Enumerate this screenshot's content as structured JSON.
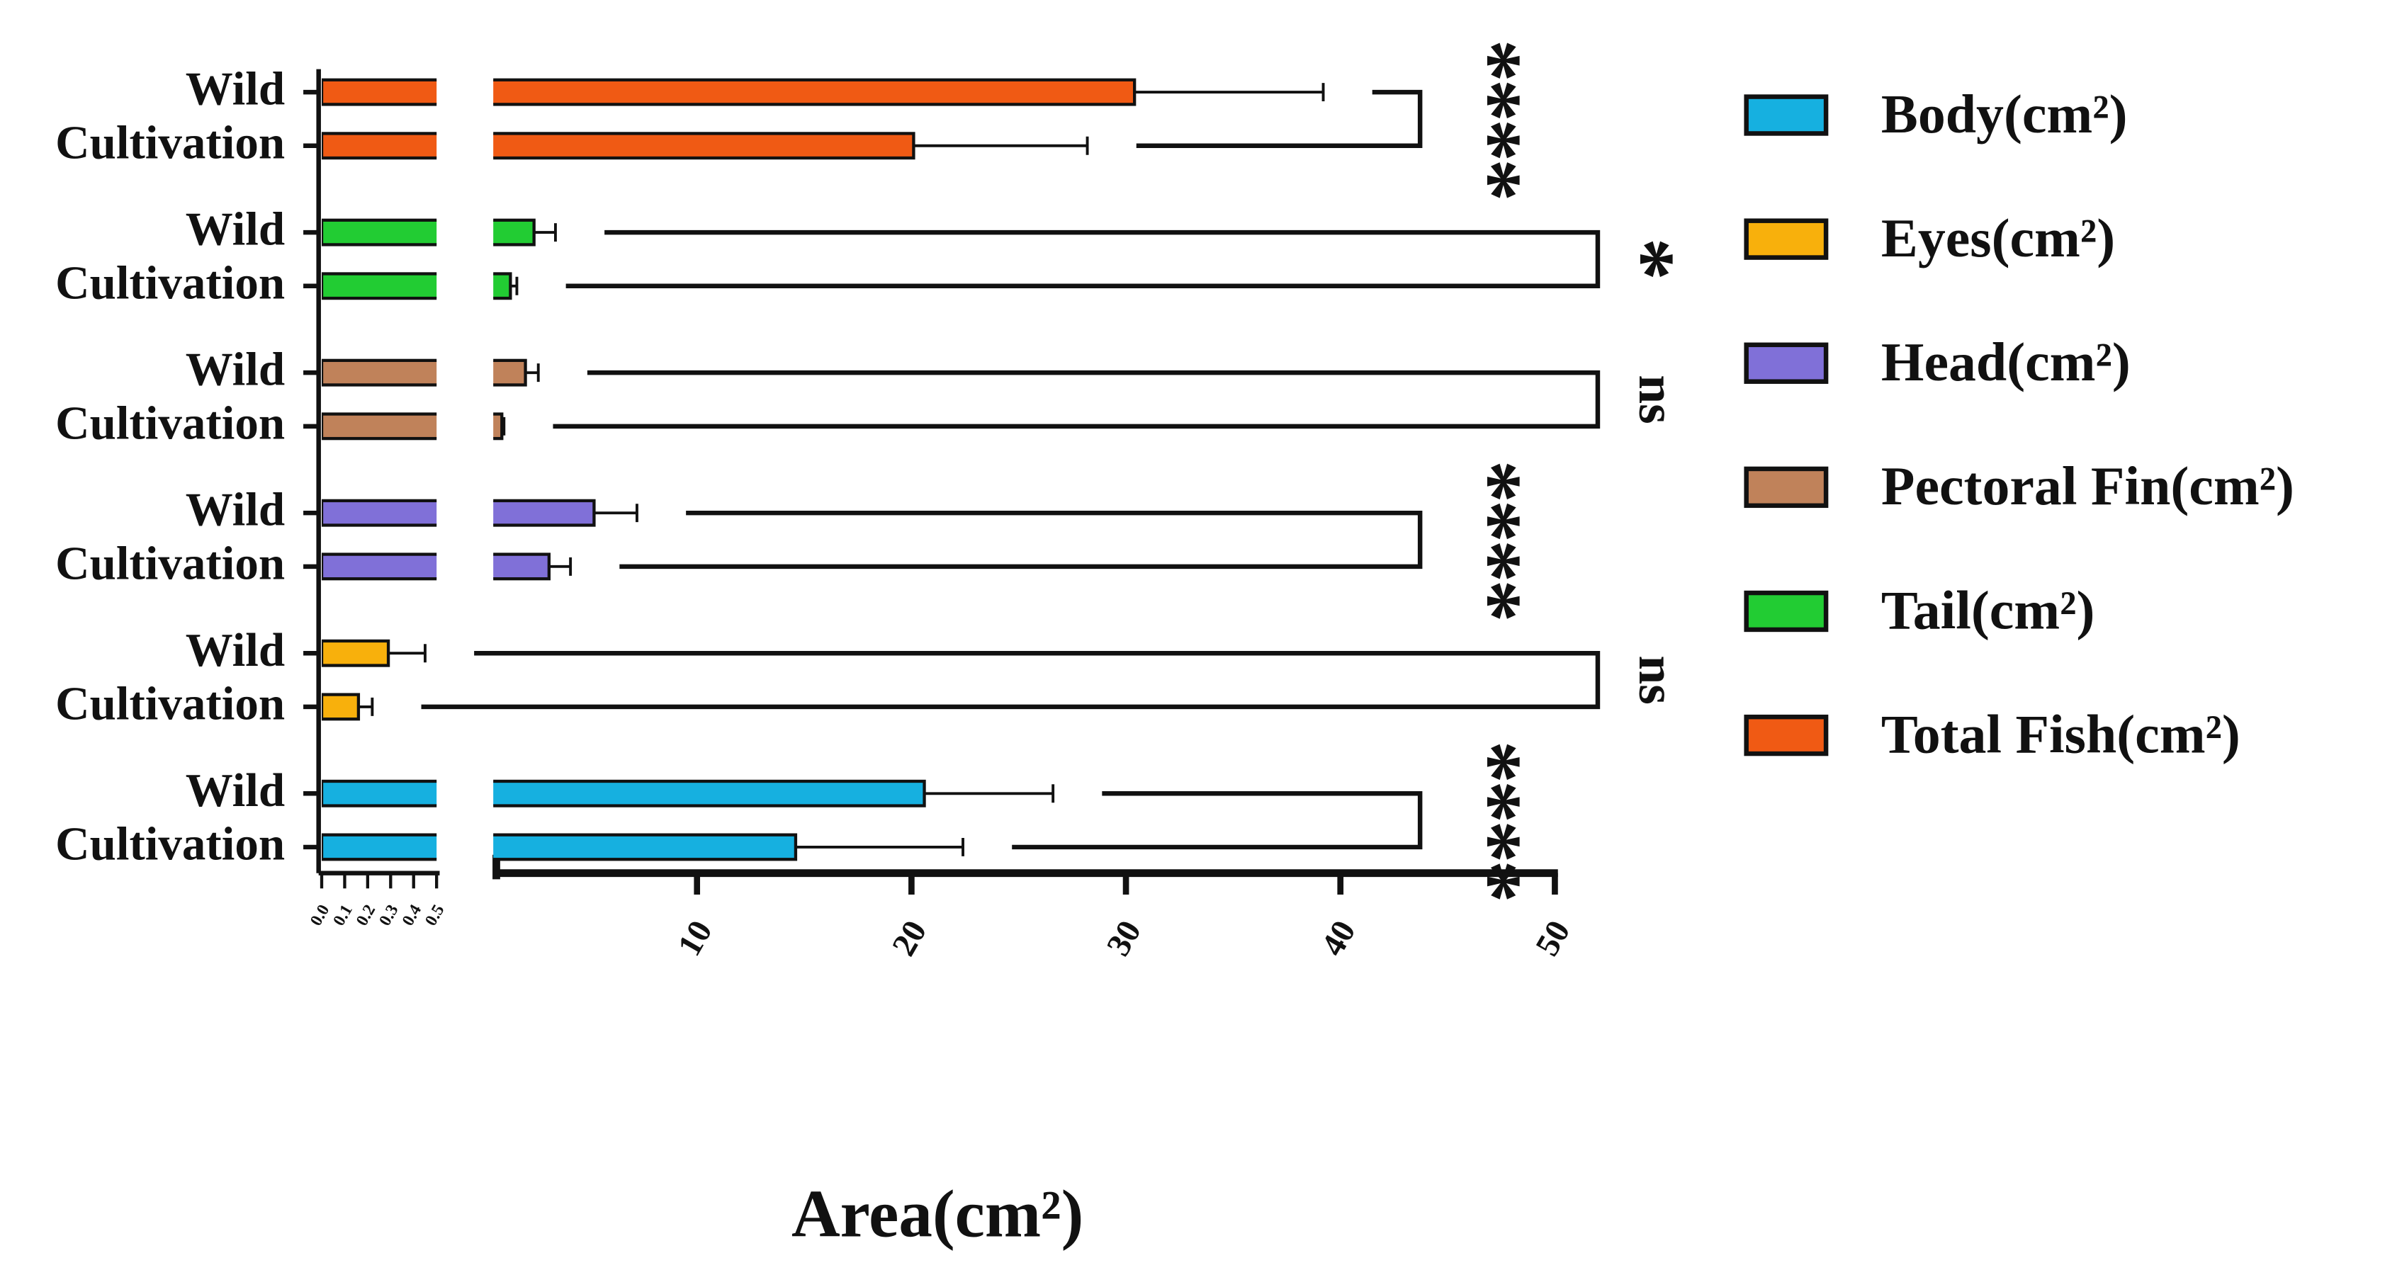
{
  "chart_data": {
    "type": "bar",
    "orientation": "horizontal",
    "x_label": "Area(cm²)",
    "categories": [
      "Wild",
      "Cultivation"
    ],
    "series": [
      {
        "name": "Total Fish(cm²)",
        "color": "#f05a14",
        "values": [
          30.4,
          20.1
        ],
        "errors": [
          8.8,
          8.1
        ],
        "significance": "****"
      },
      {
        "name": "Tail(cm²)",
        "color": "#22cc33",
        "values": [
          2.4,
          1.3
        ],
        "errors": [
          1.0,
          0.3
        ],
        "significance": "*"
      },
      {
        "name": "Pectoral Fin(cm²)",
        "color": "#c0825a",
        "values": [
          2.0,
          0.9
        ],
        "errors": [
          0.6,
          0.1
        ],
        "significance": "ns"
      },
      {
        "name": "Head(cm²)",
        "color": "#8070d8",
        "values": [
          5.2,
          3.1
        ],
        "errors": [
          2.0,
          1.0
        ],
        "significance": "****"
      },
      {
        "name": "Eyes(cm²)",
        "color": "#f8b00c",
        "values": [
          0.29,
          0.16
        ],
        "errors": [
          0.16,
          0.06
        ],
        "significance": "ns"
      },
      {
        "name": "Body(cm²)",
        "color": "#16b0e0",
        "values": [
          20.6,
          14.6
        ],
        "errors": [
          6.0,
          7.8
        ],
        "significance": "****"
      }
    ],
    "legend_order": [
      5,
      4,
      3,
      2,
      1,
      0
    ],
    "axis_segments": [
      {
        "xlim": [
          0,
          0.5
        ],
        "xticks": [
          {
            "value": 0,
            "label": "0.0"
          },
          {
            "value": 0.1,
            "label": "0.1"
          },
          {
            "value": 0.2,
            "label": "0.2"
          },
          {
            "value": 0.3,
            "label": "0.3"
          },
          {
            "value": 0.4,
            "label": "0.4"
          },
          {
            "value": 0.5,
            "label": "0.5"
          }
        ]
      },
      {
        "xlim": [
          0.5,
          50
        ],
        "xticks": [
          10,
          20,
          30,
          40,
          50
        ]
      }
    ]
  }
}
